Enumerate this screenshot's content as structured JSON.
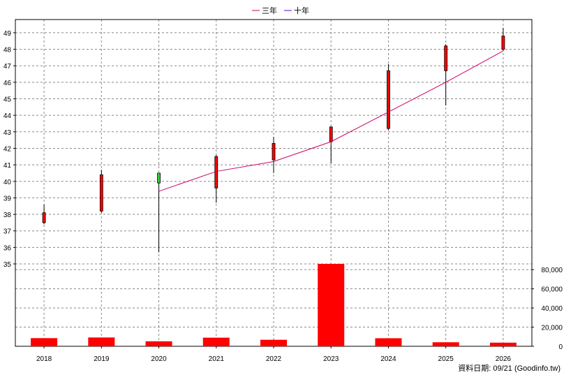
{
  "chart_data": {
    "type": "candlestick",
    "legend": [
      {
        "name": "三年",
        "color": "#cc0066"
      },
      {
        "name": "十年",
        "color": "#6600cc"
      }
    ],
    "categories": [
      "2018",
      "2019",
      "2020",
      "2021",
      "2022",
      "2023",
      "2024",
      "2025",
      "2026"
    ],
    "price_axis": {
      "ylim": [
        35,
        49.8
      ],
      "ticks": [
        35,
        36,
        37,
        38,
        39,
        40,
        41,
        42,
        43,
        44,
        45,
        46,
        47,
        48,
        49
      ]
    },
    "volume_axis": {
      "ylim": [
        0,
        86000
      ],
      "ticks": [
        0,
        20000,
        40000,
        60000,
        80000
      ],
      "tick_labels": [
        "0",
        "20,000",
        "40,000",
        "60,000",
        "80,000"
      ]
    },
    "candles": [
      {
        "year": "2018",
        "open": 37.5,
        "close": 38.1,
        "high": 38.6,
        "low": 37.4,
        "color": "#ff0000"
      },
      {
        "year": "2019",
        "open": 38.2,
        "close": 40.4,
        "high": 40.7,
        "low": 38.1,
        "color": "#ff0000"
      },
      {
        "year": "2020",
        "open": 40.5,
        "close": 39.9,
        "high": 40.5,
        "low": 35.7,
        "color": "#33cc33"
      },
      {
        "year": "2021",
        "open": 39.6,
        "close": 41.5,
        "high": 41.6,
        "low": 38.7,
        "color": "#ff0000"
      },
      {
        "year": "2022",
        "open": 41.3,
        "close": 42.3,
        "high": 42.7,
        "low": 40.5,
        "color": "#ff0000"
      },
      {
        "year": "2023",
        "open": 42.4,
        "close": 43.3,
        "high": 43.3,
        "low": 41.1,
        "color": "#ff0000"
      },
      {
        "year": "2024",
        "open": 43.2,
        "close": 46.7,
        "high": 47.1,
        "low": 43.1,
        "color": "#ff0000"
      },
      {
        "year": "2025",
        "open": 46.7,
        "close": 48.2,
        "high": 48.3,
        "low": 44.6,
        "color": "#ff0000"
      },
      {
        "year": "2026",
        "open": 48.0,
        "close": 48.8,
        "high": 49.3,
        "low": 47.9,
        "color": "#ff0000"
      }
    ],
    "series": [
      {
        "name": "三年",
        "color": "#cc0066",
        "x": [
          "2020",
          "2021",
          "2022",
          "2023",
          "2024",
          "2025",
          "2026"
        ],
        "values": [
          39.4,
          40.6,
          41.2,
          42.4,
          44.2,
          46.0,
          47.9
        ]
      }
    ],
    "volume": [
      {
        "year": "2018",
        "value": 8500
      },
      {
        "year": "2019",
        "value": 9200
      },
      {
        "year": "2020",
        "value": 5200
      },
      {
        "year": "2021",
        "value": 9000
      },
      {
        "year": "2022",
        "value": 6800
      },
      {
        "year": "2023",
        "value": 86000
      },
      {
        "year": "2024",
        "value": 8400
      },
      {
        "year": "2025",
        "value": 4200
      },
      {
        "year": "2026",
        "value": 3800
      }
    ],
    "grid": true
  },
  "footer": {
    "text": "資料日期: 09/21  (Goodinfo.tw)"
  }
}
